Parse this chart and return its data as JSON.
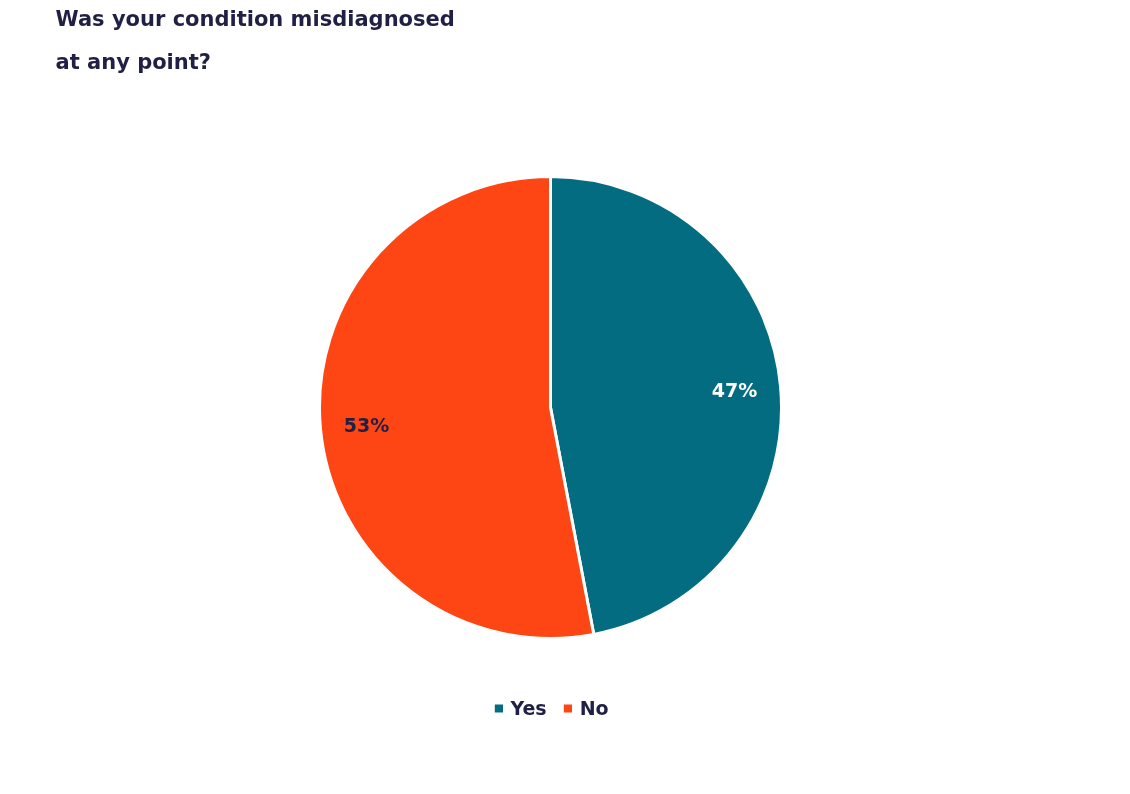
{
  "chart_data": {
    "type": "pie",
    "title": "Was your condition misdiagnosed at any point?",
    "categories": [
      "Yes",
      "No"
    ],
    "values": [
      47,
      53
    ],
    "colors": [
      "#036c80",
      "#fe4514"
    ],
    "value_labels": [
      "47%",
      "53%"
    ],
    "legend": "bottom"
  }
}
